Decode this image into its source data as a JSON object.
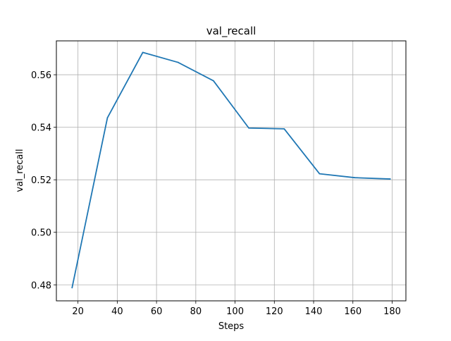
{
  "chart_data": {
    "type": "line",
    "title": "val_recall",
    "xlabel": "Steps",
    "ylabel": "val_recall",
    "xlim": [
      9,
      187
    ],
    "ylim": [
      0.4739,
      0.5729
    ],
    "xticks": [
      20,
      40,
      60,
      80,
      100,
      120,
      140,
      160,
      180
    ],
    "xtick_labels": [
      "20",
      "40",
      "60",
      "80",
      "100",
      "120",
      "140",
      "160",
      "180"
    ],
    "yticks": [
      0.48,
      0.5,
      0.52,
      0.54,
      0.56
    ],
    "ytick_labels": [
      "0.48",
      "0.50",
      "0.52",
      "0.54",
      "0.56"
    ],
    "grid": true,
    "series": [
      {
        "color": "#1f77b4",
        "x": [
          17,
          35,
          53,
          71,
          89,
          107,
          125,
          143,
          161,
          179
        ],
        "y": [
          0.4789,
          0.5436,
          0.5685,
          0.5647,
          0.5577,
          0.5397,
          0.5394,
          0.5223,
          0.5208,
          0.5203
        ]
      }
    ]
  }
}
